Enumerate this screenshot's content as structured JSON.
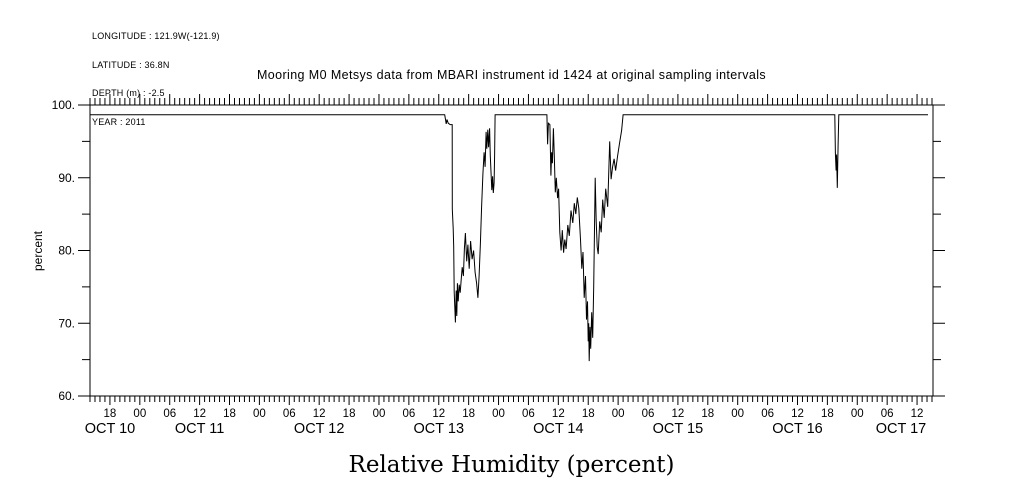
{
  "header": {
    "lines": [
      "LONGITUDE : 121.9W(-121.9)",
      "LATITUDE : 36.8N",
      "DEPTH (m) : -2.5",
      "YEAR : 2011"
    ]
  },
  "colors": {
    "foreground": "#000000",
    "background": "#ffffff"
  },
  "chart_data": {
    "type": "line",
    "title": "Mooring M0 Metsys data from MBARI instrument id 1424 at original sampling intervals",
    "xlabel": "Relative Humidity (percent)",
    "ylabel": "percent",
    "grid": false,
    "legend": false,
    "line_color": "#000000",
    "ylim": [
      60,
      100
    ],
    "y_major_ticks": [
      100,
      90,
      80,
      70,
      60
    ],
    "y_major_tick_labels": [
      "100.",
      "90.",
      "80.",
      "70.",
      "60."
    ],
    "y_minor_ticks": [
      95,
      85,
      75,
      65
    ],
    "x_axis": {
      "unit": "hours since 2011 OCT 10 00:00",
      "xlim": [
        14.0,
        183.2
      ],
      "minor_step_hours": 1,
      "hour_ticks": [
        18,
        24,
        30,
        36,
        42,
        48,
        54,
        60,
        66,
        72,
        78,
        84,
        90,
        96,
        102,
        108,
        114,
        120,
        126,
        132,
        138,
        144,
        150,
        156,
        162,
        168,
        174,
        180
      ],
      "hour_tick_labels": [
        "18",
        "00",
        "06",
        "12",
        "18",
        "00",
        "06",
        "12",
        "18",
        "00",
        "06",
        "12",
        "18",
        "00",
        "06",
        "12",
        "18",
        "00",
        "06",
        "12",
        "18",
        "00",
        "06",
        "12",
        "18",
        "00",
        "06",
        "12"
      ],
      "date_labels": [
        {
          "label": "OCT 10",
          "noon_hour": 12
        },
        {
          "label": "OCT 11",
          "noon_hour": 36
        },
        {
          "label": "OCT 12",
          "noon_hour": 60
        },
        {
          "label": "OCT 13",
          "noon_hour": 84
        },
        {
          "label": "OCT 14",
          "noon_hour": 108
        },
        {
          "label": "OCT 15",
          "noon_hour": 132
        },
        {
          "label": "OCT 16",
          "noon_hour": 156
        },
        {
          "label": "OCT 17",
          "noon_hour": 180
        }
      ]
    },
    "series": [
      {
        "name": "relative humidity",
        "points": [
          [
            14.0,
            98.65
          ],
          [
            85.2,
            98.65
          ],
          [
            85.35,
            98.0
          ],
          [
            85.5,
            97.4
          ],
          [
            85.65,
            98.0
          ],
          [
            85.9,
            97.5
          ],
          [
            86.3,
            97.3
          ],
          [
            86.7,
            97.3
          ],
          [
            86.72,
            85.7
          ],
          [
            86.9,
            83.0
          ],
          [
            87.0,
            80.5
          ],
          [
            87.1,
            74.3
          ],
          [
            87.25,
            71.5
          ],
          [
            87.35,
            70.1
          ],
          [
            87.5,
            74.5
          ],
          [
            87.62,
            71.0
          ],
          [
            87.75,
            75.5
          ],
          [
            87.9,
            73.0
          ],
          [
            88.1,
            75.3
          ],
          [
            88.3,
            74.2
          ],
          [
            88.5,
            76.0
          ],
          [
            88.7,
            77.7
          ],
          [
            88.95,
            76.5
          ],
          [
            89.15,
            80.3
          ],
          [
            89.35,
            82.4
          ],
          [
            89.6,
            78.5
          ],
          [
            89.85,
            80.8
          ],
          [
            90.1,
            77.5
          ],
          [
            90.4,
            81.3
          ],
          [
            90.7,
            78.8
          ],
          [
            91.0,
            80.0
          ],
          [
            91.3,
            77.0
          ],
          [
            91.6,
            75.5
          ],
          [
            91.85,
            73.5
          ],
          [
            92.1,
            76.5
          ],
          [
            92.35,
            81.0
          ],
          [
            92.6,
            86.0
          ],
          [
            92.85,
            90.5
          ],
          [
            93.1,
            93.5
          ],
          [
            93.3,
            91.5
          ],
          [
            93.5,
            96.3
          ],
          [
            93.65,
            94.0
          ],
          [
            93.85,
            96.6
          ],
          [
            94.0,
            94.2
          ],
          [
            94.2,
            96.8
          ],
          [
            94.35,
            93.0
          ],
          [
            94.5,
            90.5
          ],
          [
            94.65,
            88.3
          ],
          [
            94.8,
            90.2
          ],
          [
            94.95,
            87.9
          ],
          [
            95.1,
            89.3
          ],
          [
            95.2,
            93.0
          ],
          [
            95.3,
            98.65
          ],
          [
            105.7,
            98.65
          ],
          [
            105.85,
            94.6
          ],
          [
            106.0,
            97.5
          ],
          [
            106.3,
            97.3
          ],
          [
            106.5,
            90.3
          ],
          [
            106.65,
            93.5
          ],
          [
            106.8,
            92.0
          ],
          [
            107.0,
            96.8
          ],
          [
            107.2,
            93.0
          ],
          [
            107.4,
            88.0
          ],
          [
            107.6,
            90.0
          ],
          [
            107.85,
            87.2
          ],
          [
            108.05,
            88.5
          ],
          [
            108.3,
            82.5
          ],
          [
            108.55,
            80.0
          ],
          [
            108.8,
            82.8
          ],
          [
            109.05,
            79.7
          ],
          [
            109.3,
            81.5
          ],
          [
            109.55,
            80.2
          ],
          [
            109.9,
            83.5
          ],
          [
            110.2,
            82.0
          ],
          [
            110.55,
            85.5
          ],
          [
            110.9,
            83.8
          ],
          [
            111.2,
            86.5
          ],
          [
            111.5,
            85.0
          ],
          [
            111.8,
            87.3
          ],
          [
            112.1,
            85.8
          ],
          [
            112.45,
            81.5
          ],
          [
            112.7,
            77.5
          ],
          [
            112.95,
            79.8
          ],
          [
            113.2,
            73.5
          ],
          [
            113.45,
            76.5
          ],
          [
            113.65,
            70.5
          ],
          [
            113.85,
            73.0
          ],
          [
            114.0,
            67.5
          ],
          [
            114.1,
            70.0
          ],
          [
            114.2,
            64.8
          ],
          [
            114.35,
            69.5
          ],
          [
            114.5,
            66.5
          ],
          [
            114.7,
            71.5
          ],
          [
            114.9,
            68.0
          ],
          [
            115.1,
            75.0
          ],
          [
            115.4,
            90.0
          ],
          [
            115.6,
            84.0
          ],
          [
            115.8,
            80.5
          ],
          [
            116.0,
            79.5
          ],
          [
            116.3,
            84.0
          ],
          [
            116.6,
            82.5
          ],
          [
            116.9,
            87.0
          ],
          [
            117.2,
            84.5
          ],
          [
            117.5,
            88.5
          ],
          [
            117.9,
            86.0
          ],
          [
            118.3,
            95.0
          ],
          [
            118.6,
            89.8
          ],
          [
            118.9,
            91.5
          ],
          [
            119.2,
            92.6
          ],
          [
            119.5,
            91.0
          ],
          [
            119.9,
            93.0
          ],
          [
            120.3,
            94.8
          ],
          [
            120.7,
            96.5
          ],
          [
            121.0,
            98.65
          ],
          [
            163.5,
            98.65
          ],
          [
            163.62,
            93.3
          ],
          [
            163.75,
            91.0
          ],
          [
            163.85,
            93.2
          ],
          [
            164.0,
            88.6
          ],
          [
            164.15,
            94.5
          ],
          [
            164.3,
            98.65
          ],
          [
            182.2,
            98.65
          ]
        ]
      }
    ]
  }
}
